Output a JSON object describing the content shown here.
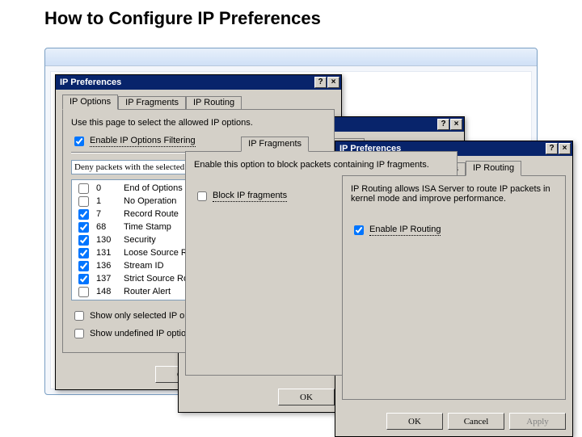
{
  "page": {
    "title": "How to Configure IP Preferences"
  },
  "tabs": {
    "opt": "IP Options",
    "frag": "IP Fragments",
    "route": "IP Routing"
  },
  "common": {
    "window_title": "IP Preferences",
    "help_glyph": "?",
    "close_glyph": "×",
    "ok": "OK",
    "cancel": "Cancel",
    "apply": "Apply"
  },
  "dlg1": {
    "intro": "Use this page to select the allowed IP options.",
    "enable_label": "Enable IP Options Filtering",
    "enable_checked": true,
    "action_text": "Deny packets with the selected IP options:",
    "rows": [
      {
        "checked": false,
        "num": "0",
        "name": "End of Options List"
      },
      {
        "checked": false,
        "num": "1",
        "name": "No Operation"
      },
      {
        "checked": true,
        "num": "7",
        "name": "Record Route"
      },
      {
        "checked": true,
        "num": "68",
        "name": "Time Stamp"
      },
      {
        "checked": true,
        "num": "130",
        "name": "Security"
      },
      {
        "checked": true,
        "num": "131",
        "name": "Loose Source Route"
      },
      {
        "checked": true,
        "num": "136",
        "name": "Stream ID"
      },
      {
        "checked": true,
        "num": "137",
        "name": "Strict Source Route"
      },
      {
        "checked": false,
        "num": "148",
        "name": "Router Alert"
      }
    ],
    "show_selected": "Show only selected IP options",
    "show_undefined": "Show undefined IP options"
  },
  "dlg2": {
    "intro": "Enable this option to block packets containing IP fragments.",
    "block_label": "Block IP fragments",
    "block_checked": false
  },
  "dlg3": {
    "intro": "IP Routing allows ISA Server to route IP packets in kernel mode and improve performance.",
    "enable_label": "Enable IP Routing",
    "enable_checked": true
  }
}
